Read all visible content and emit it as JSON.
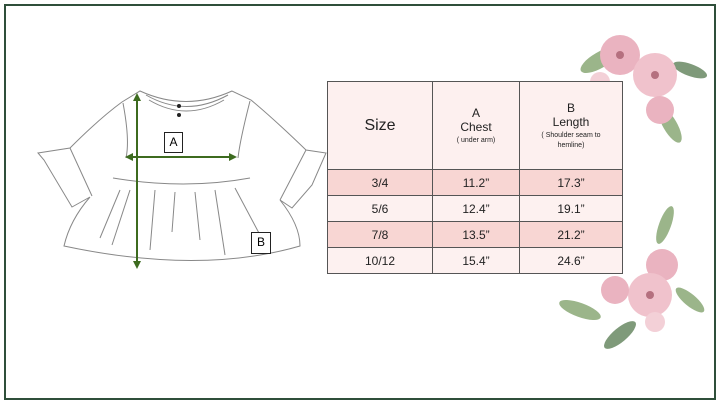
{
  "size_chart": {
    "headers": {
      "size": "Size",
      "chest": {
        "letter": "A",
        "name": "Chest",
        "note": "( under arm)"
      },
      "length": {
        "letter": "B",
        "name": "Length",
        "note": "( Shoulder seam to hemline)"
      }
    },
    "rows": [
      {
        "size": "3/4",
        "chest": "11.2”",
        "length": "17.3”"
      },
      {
        "size": "5/6",
        "chest": "12.4”",
        "length": "19.1”"
      },
      {
        "size": "7/8",
        "chest": "13.5”",
        "length": "21.2”"
      },
      {
        "size": "10/12",
        "chest": "15.4”",
        "length": "24.6”"
      }
    ]
  },
  "diagram": {
    "label_a": "A",
    "label_b": "B"
  },
  "colors": {
    "frame": "#2f4f3a",
    "arrow": "#3d6b1f",
    "row_pink": "#f8d6d3",
    "row_light": "#fdf1f0",
    "flower": "#eab3c0",
    "leaf": "#9bb58a"
  }
}
